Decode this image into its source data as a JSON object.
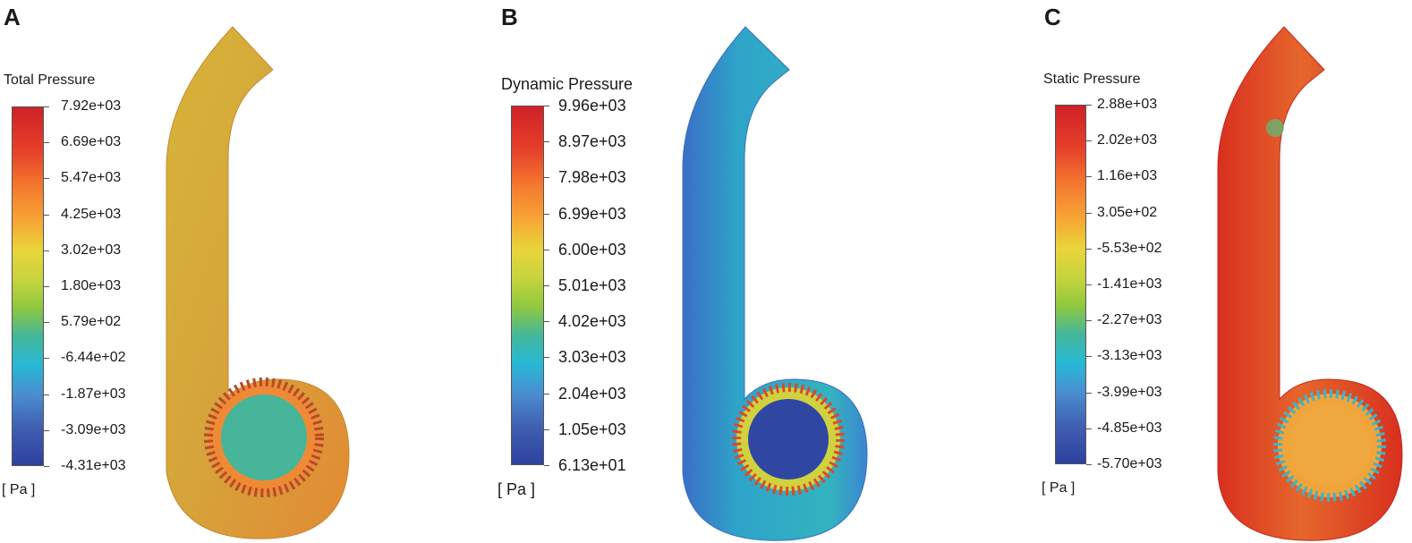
{
  "panels": [
    {
      "letter": "A",
      "legend_title": "Total Pressure",
      "ticks": [
        "7.92e+03",
        "6.69e+03",
        "5.47e+03",
        "4.25e+03",
        "3.02e+03",
        "1.80e+03",
        "5.79e+02",
        "-6.44e+02",
        "-1.87e+03",
        "-3.09e+03",
        "-4.31e+03"
      ],
      "unit": "[ Pa ]"
    },
    {
      "letter": "B",
      "legend_title": "Dynamic Pressure",
      "ticks": [
        "9.96e+03",
        "8.97e+03",
        "7.98e+03",
        "6.99e+03",
        "6.00e+03",
        "5.01e+03",
        "4.02e+03",
        "3.03e+03",
        "2.04e+03",
        "1.05e+03",
        "6.13e+01"
      ],
      "unit": "[ Pa ]"
    },
    {
      "letter": "C",
      "legend_title": "Static Pressure",
      "ticks": [
        "2.88e+03",
        "2.02e+03",
        "1.16e+03",
        "3.05e+02",
        "-5.53e+02",
        "-1.41e+03",
        "-2.27e+03",
        "-3.13e+03",
        "-3.99e+03",
        "-4.85e+03",
        "-5.70e+03"
      ],
      "unit": "[ Pa ]"
    }
  ],
  "colors": {
    "panel_a_body": "#d4a63a",
    "panel_a_core": "#46b59a",
    "panel_b_body": "#2fa7c9",
    "panel_b_core": "#2f47a3",
    "panel_c_body": "#e5522a",
    "panel_c_core": "#f0a43a"
  }
}
